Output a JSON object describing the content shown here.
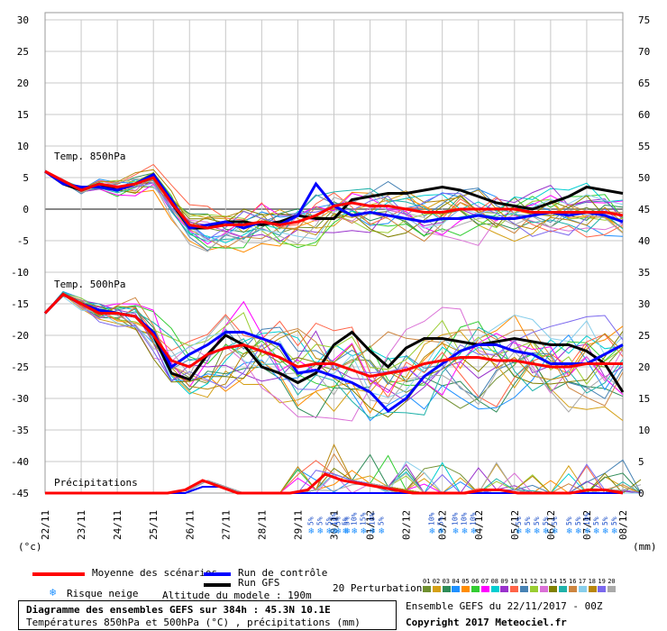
{
  "chart_data": {
    "type": "line",
    "left_axis_label": "(°c)",
    "right_axis_label": "(mm)",
    "left_ticks": [
      30,
      25,
      20,
      15,
      10,
      5,
      0,
      -5,
      -10,
      -15,
      -20,
      -25,
      -30,
      -35,
      -40,
      -45
    ],
    "right_ticks": [
      75,
      70,
      65,
      60,
      55,
      50,
      45,
      40,
      35,
      30,
      25,
      20,
      15,
      10,
      5,
      0
    ],
    "x_dates": [
      "22/11",
      "23/11",
      "24/11",
      "25/11",
      "26/11",
      "27/11",
      "28/11",
      "29/11",
      "30/11",
      "01/12",
      "02/12",
      "03/12",
      "04/12",
      "05/12",
      "06/12",
      "07/12",
      "08/12"
    ],
    "ylim_left": [
      -45,
      30
    ],
    "ylim_right": [
      0,
      75
    ],
    "section_labels": {
      "t850": "Temp. 850hPa",
      "t500": "Temp. 500hPa",
      "precip": "Précipitations"
    },
    "snow_risk": [
      {
        "day": 7.35,
        "pct": [
          "5%",
          "5%",
          "5%",
          "5%",
          "5%"
        ]
      },
      {
        "day": 8.0,
        "pct": [
          "10%"
        ]
      },
      {
        "day": 8.3,
        "pct": [
          "5%",
          "10%",
          "15%",
          "10%",
          "5%"
        ]
      },
      {
        "day": 10.7,
        "pct": [
          "10%",
          "5%"
        ]
      },
      {
        "day": 11.35,
        "pct": [
          "10%",
          "10%",
          "10%"
        ]
      },
      {
        "day": 13.1,
        "pct": [
          "5%",
          "5%",
          "5%",
          "5%",
          "5%"
        ]
      },
      {
        "day": 14.5,
        "pct": [
          "5%",
          "5%",
          "10%",
          "5%",
          "5%",
          "5%"
        ]
      }
    ],
    "series": [
      {
        "name": "Moyenne des scénarios",
        "color": "#ff0000",
        "t850": [
          6,
          4.5,
          3,
          4,
          3.5,
          4,
          5,
          1,
          -2.5,
          -3,
          -2.5,
          -2.5,
          -2,
          -2.5,
          -2,
          -1,
          0.5,
          1,
          0.5,
          0.5,
          0,
          -0.5,
          -0.5,
          0,
          0,
          0,
          0,
          -0.5,
          -0.5,
          -0.5,
          -0.5,
          -0.5,
          -1
        ],
        "t500": [
          -16.5,
          -13.5,
          -15,
          -16.5,
          -16.5,
          -17,
          -20,
          -24,
          -25,
          -23,
          -22,
          -21.5,
          -22.5,
          -23.5,
          -25,
          -24.5,
          -24.5,
          -25.5,
          -26.5,
          -26,
          -25.5,
          -24.5,
          -24,
          -23.5,
          -23.5,
          -24,
          -24,
          -24.5,
          -25,
          -25,
          -24.5,
          -24.5,
          -24.5
        ],
        "precip": [
          0,
          0,
          0,
          0,
          0,
          0,
          0,
          0,
          0.5,
          2,
          1,
          0,
          0,
          0,
          0,
          0.5,
          3,
          2,
          1.5,
          1,
          0.5,
          0,
          0,
          0,
          0,
          0.5,
          0.5,
          0,
          0,
          0,
          0,
          0.5,
          0.5,
          0
        ]
      },
      {
        "name": "Run de contrôle",
        "color": "#0000ff",
        "t850": [
          6,
          4,
          3.5,
          3.5,
          3,
          4,
          5.5,
          1.5,
          -3,
          -2.5,
          -2,
          -3,
          -2,
          -2.5,
          -1,
          4,
          0.5,
          -1,
          -0.5,
          -1,
          -1.5,
          -2,
          -1.5,
          -1.5,
          -1,
          -1.5,
          -1.5,
          -1,
          -0.5,
          -1,
          -0.5,
          -1,
          -2
        ],
        "t500": [
          -16.5,
          -13.5,
          -15,
          -16,
          -16.5,
          -17,
          -19.5,
          -25,
          -23,
          -21.5,
          -19.5,
          -19.5,
          -20.5,
          -21.5,
          -26,
          -25.5,
          -26.5,
          -27.5,
          -29,
          -32,
          -30,
          -26.5,
          -24.5,
          -22.5,
          -21.5,
          -21.5,
          -22.5,
          -23,
          -24.5,
          -24.5,
          -24.5,
          -23,
          -21.5
        ],
        "precip": [
          0,
          0,
          0,
          0,
          0,
          0,
          0,
          0,
          0,
          1,
          1,
          0,
          0,
          0,
          0,
          0,
          0,
          0,
          0,
          0,
          0,
          0,
          0,
          0,
          0,
          0,
          0,
          0,
          0,
          0,
          0,
          0,
          0,
          0
        ]
      },
      {
        "name": "Run GFS",
        "color": "#000000",
        "t850": [
          6,
          4,
          3,
          4,
          3,
          4,
          5.5,
          1,
          -3,
          -3,
          -2,
          -2,
          -2.5,
          -2,
          -1,
          -1.5,
          -1.5,
          1.5,
          2,
          2.5,
          2.5,
          3,
          3.5,
          3,
          2,
          1,
          0.5,
          0,
          1,
          2,
          3.5,
          3,
          2.5
        ],
        "t500": [
          -16.5,
          -13.5,
          -15,
          -16,
          -16.5,
          -17,
          -20,
          -26,
          -27,
          -23,
          -20,
          -21.5,
          -25,
          -26,
          -27.5,
          -26,
          -21.5,
          -19.5,
          -22.5,
          -25,
          -22,
          -20.5,
          -20.5,
          -21,
          -21.5,
          -21,
          -20.5,
          -21,
          -21.5,
          -21.5,
          -22.5,
          -24.5,
          -29
        ]
      }
    ],
    "legend": {
      "mean": "Moyenne des scénarios",
      "control": "Run de contrôle",
      "gfs": "Run GFS",
      "snow": "Risque neige",
      "altitude": "Altitude du modele : 190m",
      "perturbations": "20 Perturbations",
      "pert_numbers": [
        "01",
        "02",
        "03",
        "04",
        "05",
        "06",
        "07",
        "08",
        "09",
        "10",
        "11",
        "12",
        "13",
        "14",
        "15",
        "16",
        "17",
        "18",
        "19",
        "20"
      ],
      "pert_colors": [
        "#6f8f2f",
        "#d4a017",
        "#2e8b57",
        "#1e90ff",
        "#ff8c00",
        "#32cd32",
        "#ff00ff",
        "#00ced1",
        "#9932cc",
        "#ff6347",
        "#4682b4",
        "#9acd32",
        "#da70d6",
        "#808000",
        "#20b2aa",
        "#cd853f",
        "#87ceeb",
        "#b8860b",
        "#7b68ee",
        "#a9a9a9"
      ]
    },
    "title_box": {
      "line1": "Diagramme des ensembles GEFS sur 384h : 45.3N 10.1E",
      "line2": "Températures 850hPa et 500hPa (°C) , précipitations (mm)"
    },
    "run_info": "Ensemble GEFS du 22/11/2017 - 00Z",
    "copyright": "Copyright 2017 Meteociel.fr"
  }
}
